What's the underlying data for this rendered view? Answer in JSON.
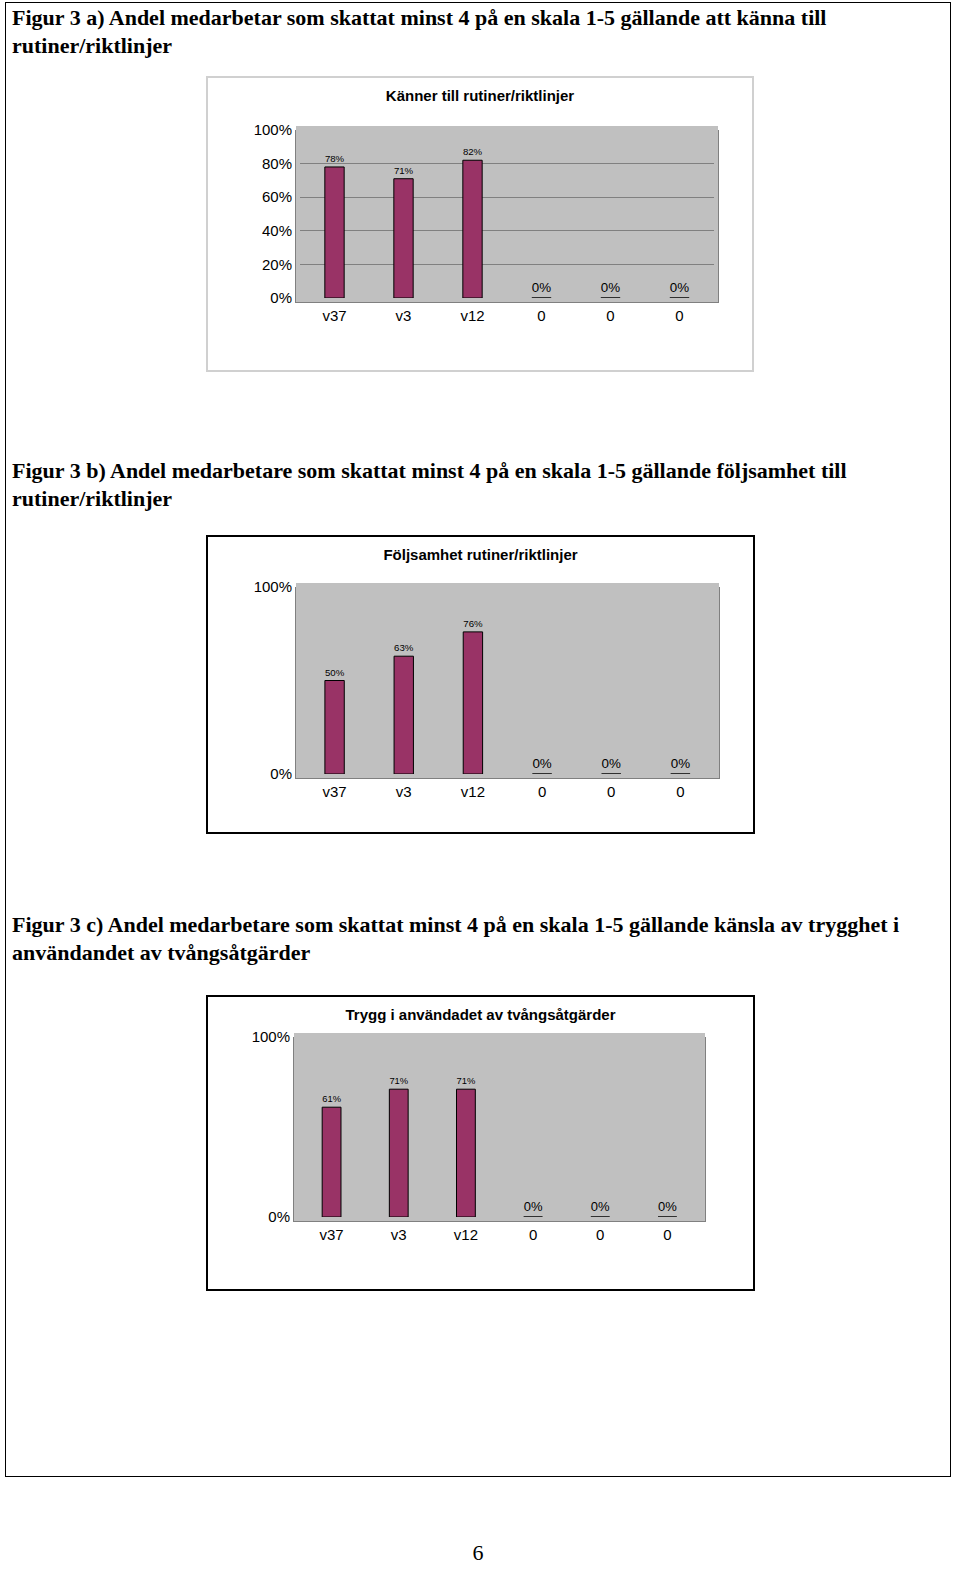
{
  "captions": [
    "Figur 3 a) Andel medarbetar som skattat minst 4 på en skala 1-5  gällande att känna till rutiner/riktlinjer",
    "Figur 3 b) Andel medarbetare som skattat minst 4 på en skala 1-5 gällande följsamhet till rutiner/riktlinjer",
    "Figur 3 c) Andel medarbetare som skattat minst 4 på en skala 1-5 gällande känsla av trygghet i användandet av tvångsåtgärder"
  ],
  "chart_data": [
    {
      "type": "bar",
      "title": "Känner till rutiner/riktlinjer",
      "categories": [
        "v37",
        "v3",
        "v12",
        "0",
        "0",
        "0"
      ],
      "values": [
        78,
        71,
        82,
        0,
        0,
        0
      ],
      "value_labels": [
        "78%",
        "71%",
        "82%",
        "0%",
        "0%",
        "0%"
      ],
      "data_labels": true,
      "color": "#993366",
      "ylim": [
        0,
        100
      ],
      "yticks": [
        {
          "value": 0,
          "label": "0%"
        },
        {
          "value": 20,
          "label": "20%"
        },
        {
          "value": 40,
          "label": "40%"
        },
        {
          "value": 60,
          "label": "60%"
        },
        {
          "value": 80,
          "label": "80%"
        },
        {
          "value": 100,
          "label": "100%"
        }
      ],
      "grid": true
    },
    {
      "type": "bar",
      "title": "Följsamhet rutiner/riktlinjer",
      "categories": [
        "v37",
        "v3",
        "v12",
        "0",
        "0",
        "0"
      ],
      "values": [
        50,
        63,
        76,
        0,
        0,
        0
      ],
      "value_labels": [
        "50%",
        "63%",
        "76%",
        "0%",
        "0%",
        "0%"
      ],
      "data_labels": true,
      "color": "#993366",
      "ylim": [
        0,
        100
      ],
      "yticks": [
        {
          "value": 0,
          "label": "0%"
        },
        {
          "value": 100,
          "label": "100%"
        }
      ],
      "grid": true
    },
    {
      "type": "bar",
      "title": "Trygg i användadet av tvångsåtgärder",
      "categories": [
        "v37",
        "v3",
        "v12",
        "0",
        "0",
        "0"
      ],
      "values": [
        61,
        71,
        71,
        0,
        0,
        0
      ],
      "value_labels": [
        "61%",
        "71%",
        "71%",
        "0%",
        "0%",
        "0%"
      ],
      "data_labels": true,
      "color": "#993366",
      "ylim": [
        0,
        100
      ],
      "yticks": [
        {
          "value": 0,
          "label": "0%"
        },
        {
          "value": 100,
          "label": "100%"
        }
      ],
      "grid": true
    }
  ],
  "page_number": 6
}
